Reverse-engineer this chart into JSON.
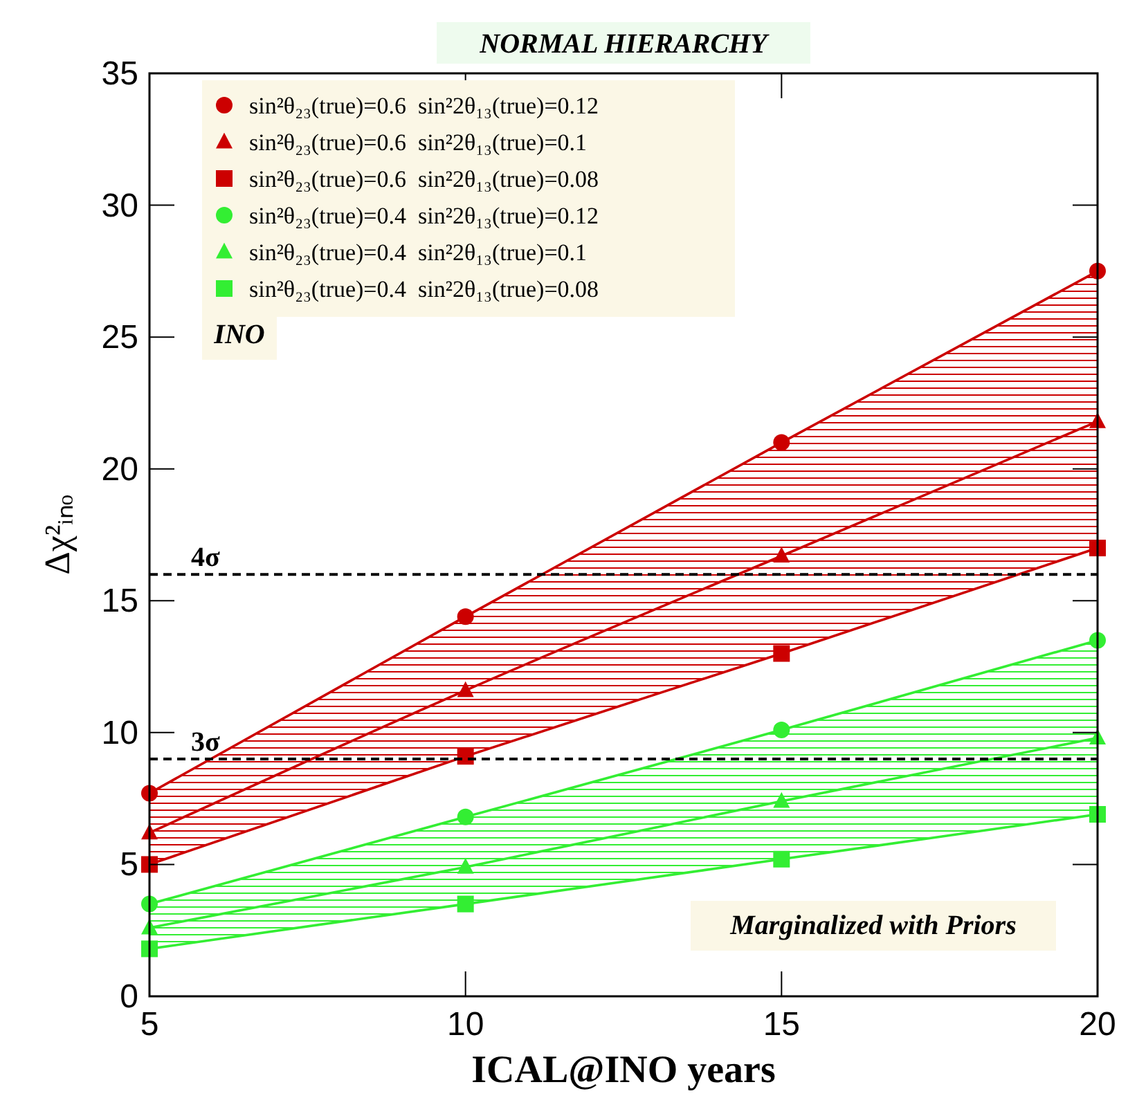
{
  "chart_data": {
    "type": "line",
    "title": "NORMAL HIERARCHY",
    "xlabel": "ICAL@INO years",
    "ylabel": "Δχ²ᵢₙₒ",
    "x": [
      5,
      10,
      15,
      20
    ],
    "xlim": [
      5,
      20
    ],
    "xticks": [
      5,
      10,
      15,
      20
    ],
    "ylim": [
      0,
      35
    ],
    "yticks": [
      0,
      5,
      10,
      15,
      20,
      25,
      30,
      35
    ],
    "legend": "top left",
    "grid": false,
    "line_style": "solid",
    "series": [
      {
        "name": "sin²θ₂₃(true)=0.6  sin²2θ₁₃(true)=0.12",
        "color": "#cc0000",
        "marker": "circle",
        "values": [
          7.7,
          14.4,
          21.0,
          27.5
        ]
      },
      {
        "name": "sin²θ₂₃(true)=0.6  sin²2θ₁₃(true)=0.1",
        "color": "#cc0000",
        "marker": "triangle",
        "values": [
          6.2,
          11.6,
          16.7,
          21.8
        ],
        "lower": [
          5.0,
          9.1,
          13.0,
          17.0
        ],
        "upper": [
          7.7,
          14.4,
          21.0,
          27.5
        ]
      },
      {
        "name": "sin²θ₂₃(true)=0.6  sin²2θ₁₃(true)=0.08",
        "color": "#cc0000",
        "marker": "square",
        "values": [
          5.0,
          9.1,
          13.0,
          17.0
        ]
      },
      {
        "name": "sin²θ₂₃(true)=0.4  sin²2θ₁₃(true)=0.12",
        "color": "#33ee33",
        "marker": "circle",
        "values": [
          3.5,
          6.8,
          10.1,
          13.5
        ]
      },
      {
        "name": "sin²θ₂₃(true)=0.4  sin²2θ₁₃(true)=0.1",
        "color": "#33ee33",
        "marker": "triangle",
        "values": [
          2.6,
          4.9,
          7.4,
          9.8
        ],
        "lower": [
          1.8,
          3.5,
          5.2,
          6.9
        ],
        "upper": [
          3.5,
          6.8,
          10.1,
          13.5
        ]
      },
      {
        "name": "sin²θ₂₃(true)=0.4  sin²2θ₁₃(true)=0.08",
        "color": "#33ee33",
        "marker": "square",
        "values": [
          1.8,
          3.5,
          5.2,
          6.9
        ]
      }
    ],
    "ref_lines": [
      {
        "axis": "y",
        "value": 16,
        "label": "4σ",
        "color": "#000000",
        "line_style": "dashed"
      },
      {
        "axis": "y",
        "value": 9,
        "label": "3σ",
        "color": "#000000",
        "line_style": "dashed"
      }
    ],
    "annotations": [
      "INO",
      "Marginalized with Priors"
    ]
  }
}
